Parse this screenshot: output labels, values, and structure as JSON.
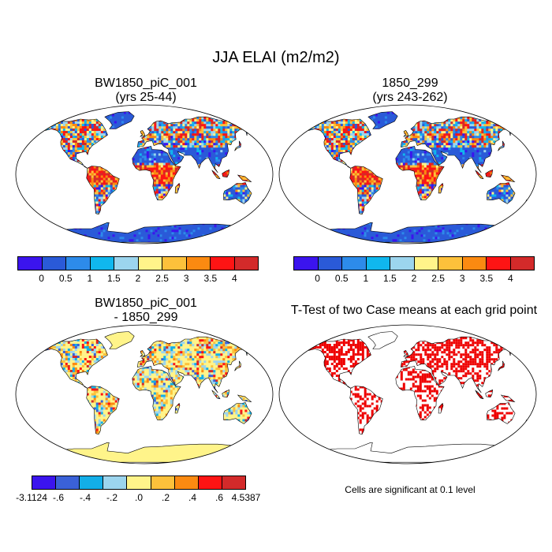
{
  "title": "JJA ELAI (m2/m2)",
  "panels": {
    "top_left": {
      "title_line1": "BW1850_piC_001",
      "title_line2": "(yrs 25-44)"
    },
    "top_right": {
      "title_line1": "1850_299",
      "title_line2": "(yrs 243-262)"
    },
    "bottom_left": {
      "title_line1": "BW1850_piC_001",
      "title_line2": "- 1850_299"
    },
    "bottom_right": {
      "title_line1": "T-Test of two Case means at each grid point"
    }
  },
  "colorbar_abs": {
    "colors": [
      "#3b14ee",
      "#2a5ad8",
      "#2d8bea",
      "#10b7ee",
      "#9cd5ee",
      "#fff48a",
      "#fcc13b",
      "#fb8a11",
      "#fe1414",
      "#d32a2a"
    ],
    "labels": [
      "0",
      "0.5",
      "1",
      "1.5",
      "2",
      "2.5",
      "3",
      "3.5",
      "4"
    ]
  },
  "colorbar_diff": {
    "colors": [
      "#3b14ee",
      "#3a61d8",
      "#13aee8",
      "#9cd5ee",
      "#fff48a",
      "#fcc13b",
      "#fb8a11",
      "#fe1414",
      "#d32a2a"
    ],
    "labels": [
      "-3.1124",
      "-.6",
      "-.4",
      "-.2",
      ".0",
      ".2",
      ".4",
      ".6",
      "4.5387"
    ]
  },
  "significance_note": "Cells are significant at 0.1 level",
  "significance_color": "#ee0000"
}
